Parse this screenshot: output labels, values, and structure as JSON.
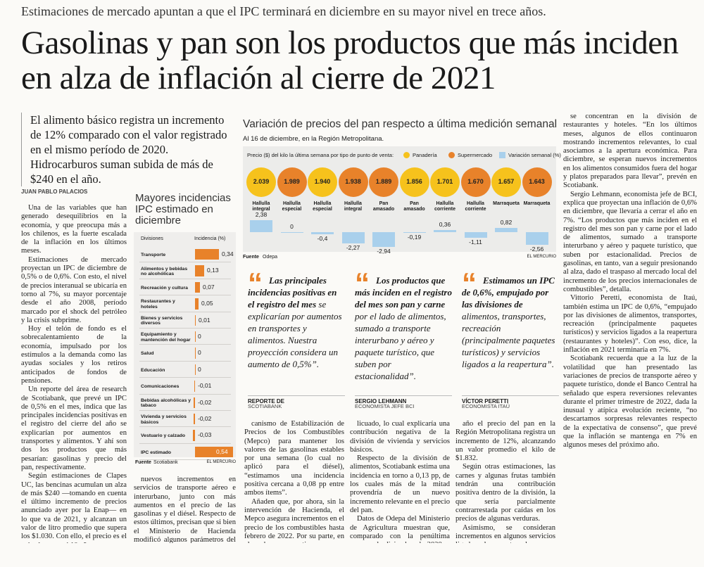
{
  "kicker": "Estimaciones de mercado apuntan a que el IPC terminará en diciembre en su mayor nivel en trece años.",
  "headline": "Gasolinas y pan son los productos que más inciden en alza de inflación al cierre de 2021",
  "lead": "El alimento básico registra un incremento de 12% comparado con el valor registrado en el mismo período de 2020. Hidrocarburos suman subida de más de $240 en el año.",
  "byline": "JUAN PABLO PALACIOS",
  "columns": [
    [
      "Una de las variables que han generado desequilibrios en la economía, y que preocupa más a los chilenos, es la fuerte escalada de la inflación en los últimos meses.",
      "Estimaciones de mercado proyectan un IPC de diciembre de 0,5% o de 0,6%. Con esto, el nivel de precios interanual se ubicaría en torno al 7%, su mayor porcentaje desde el año 2008, período marcado por el shock del petróleo y la crisis subprime.",
      "Hoy el telón de fondo es el sobrecalentamiento de la economía, impulsado por los estímulos a la demanda como las ayudas sociales y los retiros anticipados de fondos de pensiones.",
      "Un reporte del área de research de Scotiabank, que prevé un IPC de 0,5% en el mes, indica que las principales incidencias positivas en el registro del cierre del año se explicarían por aumentos en transportes y alimentos. Y ahí son dos los productos que más pesarían: gasolinas y precio del pan, respectivamente.",
      "Según estimaciones de Clapes UC, las bencinas acumulan un alza de más $240 —tomando en cuenta el último incremento de precios anunciado ayer por la Enap— en lo que va de 2021, y alcanzan un valor de litro promedio que supera los $1.030. Con ello, el precio es el más alto en casi 10 años.",
      "En Scotiabank proyectan"
    ],
    [
      "nuevos incrementos en servicios de transporte aéreo e interurbano, junto con más aumentos en el precio de las gasolinas y el diésel. Respecto de estos últimos, precisan que si bien el Ministerio de Hacienda modificó algunos parámetros del Me-"
    ],
    [
      "canismo de Estabilización de Precios de los Combustibles (Mepco) para mantener los valores de las gasolinas estables por una semana (lo cual no aplicó para el diésel), “estimamos una incidencia positiva cercana a 0,08 pp entre ambos ítems”.",
      "Añaden que, por ahora, sin la intervención de Hacienda, el Mepco asegura incrementos en el precio de los combustibles hasta febrero de 2022. Por su parte, en el banco estiman una disminución en el precio del gas"
    ],
    [
      "licuado, lo cual explicaría una contribución negativa de la división de vivienda y servicios básicos.",
      "Respecto de la división de alimentos, Scotiabank estima una incidencia en torno a 0,13 pp, de los cuales más de la mitad provendría de un nuevo incremento relevante en el precio del pan.",
      "Datos de Odepa del Ministerio de Agricultura muestran que, comparado con la penúltima semana de diciembre de 2020, a la misma fecha de este"
    ],
    [
      "año el precio del pan en la Región Metropolitana registra un incremento de 12%, alcanzando un valor promedio el kilo de $1.832.",
      "Según otras estimaciones, las carnes y algunas frutas también tendrán una contribución positiva dentro de la división, la que sería parcialmente contrarrestada por caídas en los precios de algunas verduras.",
      "Asimismo, se consideran incrementos en algunos servicios ligados a la reapertura, los que"
    ],
    [
      "se concentran en la división de restaurantes y hoteles. “En los últimos meses, algunos de ellos continuaron mostrando incrementos relevantes, lo cual asociamos a la apertura económica. Para diciembre, se esperan nuevos incrementos en los alimentos consumidos fuera del hogar y platos preparados para llevar”, prevén en Scotiabank.",
      "Sergio Lehmann, economista jefe de BCI, explica que proyectan una inflación de 0,6% en diciembre, que llevaría a cerrar el año en 7%. “Los productos que más inciden en el registro del mes son pan y carne por el lado de alimentos, sumado a transporte interurbano y aéreo y paquete turístico, que suben por estacionalidad. Precios de gasolinas, en tanto, van a seguir presionando al alza, dado el traspaso al mercado local del incremento de los precios internacionales de combustibles”, detalla.",
      "Vittorio Peretti, economista de Itaú, también estima un IPC de 0,6%, “empujado por las divisiones de alimentos, transportes, recreación (principalmente paquetes turísticos) y servicios ligados a la reapertura (restaurantes y hoteles)”. Con eso, dice, la inflación en 2021 terminaría en 7%.",
      "Scotiabank recuerda que a la luz de la volatilidad que han presentado las variaciones de precios de transporte aéreo y paquete turístico, donde el Banco Central ha señalado que espera reversiones relevantes durante el primer trimestre de 2022, dada la inusual y atípica evolución reciente, “no descartamos sorpresas relevantes respecto de la expectativa de consenso”, que prevé que la inflación se mantenga en 7% en algunos meses del próximo año."
    ]
  ],
  "quote_mark": "“",
  "quotes": [
    {
      "bold": "Las principales incidencias positivas en el registro del mes",
      "italic": "se explicarían por aumentos en transportes y alimentos. Nuestra proyección considera un aumento de 0,5%”.",
      "name": "REPORTE DE",
      "role": "SCOTIABANK"
    },
    {
      "bold": "Los productos que más inciden en el registro del mes son pan y carne",
      "italic": "por el lado de alimentos, sumado a transporte interurbano y aéreo y paquete turístico, que suben por estacionalidad”.",
      "name": "SERGIO LEHMANN",
      "role": "ECONOMISTA JEFE BCI"
    },
    {
      "bold": "Estimamos un IPC de 0,6%, empujado por las divisiones de",
      "italic": "alimentos, transportes, recreación (principalmente paquetes turísticos) y servicios ligados a la reapertura”.",
      "name": "VÍCTOR PERETTI",
      "role": "ECONOMISTA ITAÚ"
    }
  ],
  "chart_data": [
    {
      "type": "bubble-bar",
      "title": "Variación de precios del pan respecto a última medición semanal",
      "subtitle": "Al 16 de diciembre, en la Región Metropolitana.",
      "legend_title": "Precio ($) del kilo la última semana por tipo de punto de venta:",
      "categories": [
        "Hallulla integral",
        "Hallulla especial",
        "Hallulla especial",
        "Hallulla integral",
        "Pan amasado",
        "Pan amasado",
        "Hallulla corriente",
        "Hallulla corriente",
        "Marraqueta",
        "Marraqueta"
      ],
      "series": [
        {
          "name": "Panadería",
          "color": "#f6c21c",
          "values": [
            2039,
            null,
            1940,
            null,
            null,
            1856,
            1701,
            null,
            1657,
            null
          ],
          "value_labels": [
            "2.039",
            null,
            "1.940",
            null,
            null,
            "1.856",
            "1.701",
            null,
            "1.657",
            null
          ]
        },
        {
          "name": "Supermercado",
          "color": "#e8822a",
          "values": [
            null,
            1989,
            null,
            1938,
            1889,
            null,
            null,
            1670,
            null,
            1643
          ],
          "value_labels": [
            null,
            "1.989",
            null,
            "1.938",
            "1.889",
            null,
            null,
            "1.670",
            null,
            "1.643"
          ]
        },
        {
          "name": "Variación semanal (%)",
          "color": "#a9d0ec",
          "values": [
            2.38,
            0,
            -0.4,
            -2.27,
            -2.94,
            -0.19,
            0.36,
            -1.11,
            0.82,
            -2.56
          ],
          "value_labels": [
            "2,38",
            "0",
            "-0,4",
            "-2,27",
            "-2,94",
            "-0,19",
            "0,36",
            "-1,11",
            "0,82",
            "-2,56"
          ]
        }
      ],
      "source_label": "Fuente",
      "source": "Odepa",
      "credit": "EL MERCURIO"
    },
    {
      "type": "hbar",
      "title": "Mayores incidencias IPC estimado en diciembre",
      "category_header": "Divisiones",
      "value_header": "Incidencia (%)",
      "categories": [
        "Transporte",
        "Alimentos y bebidas no alcohólicas",
        "Recreación y cultura",
        "Restaurantes y hoteles",
        "Bienes y servicios diversos",
        "Equipamiento y mantención del hogar",
        "Salud",
        "Educación",
        "Comunicaciones",
        "Bebidas alcohólicas y tabaco",
        "Vivienda y servicios básicos",
        "Vestuario y calzado",
        "IPC estimado"
      ],
      "values": [
        0.34,
        0.13,
        0.07,
        0.05,
        0.01,
        0,
        0,
        0,
        -0.01,
        -0.02,
        -0.02,
        -0.03,
        0.54
      ],
      "value_labels": [
        "0,34",
        "0,13",
        "0,07",
        "0,05",
        "0,01",
        "0",
        "0",
        "0",
        "-0,01",
        "-0,02",
        "-0,02",
        "-0,03",
        "0,54"
      ],
      "color": "#e8822a",
      "source_label": "Fuente",
      "source": "Scotiabank",
      "credit": "EL MERCURIO"
    }
  ]
}
